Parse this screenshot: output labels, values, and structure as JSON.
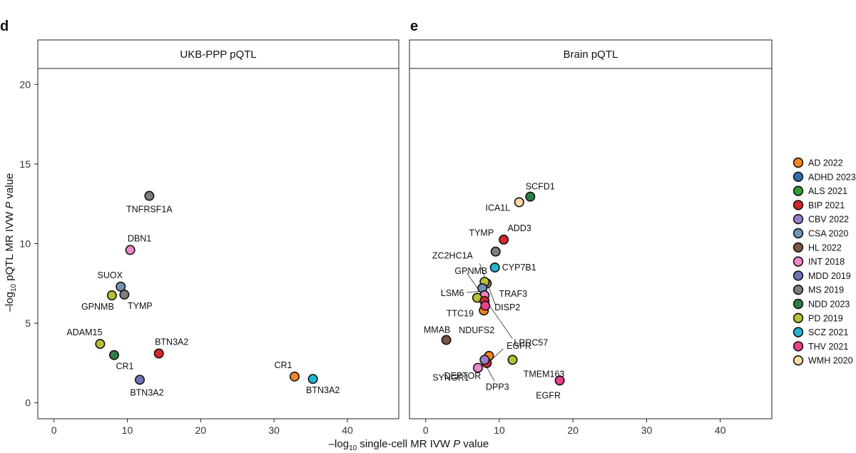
{
  "chart_data": [
    {
      "type": "scatter",
      "panel_letter": "d",
      "title": "UKB-PPP pQTL",
      "xlim": [
        -2.2,
        47
      ],
      "ylim": [
        -1.0,
        21
      ],
      "xticks": [
        0,
        10,
        20,
        30,
        40
      ],
      "yticks": [
        0,
        5,
        10,
        15,
        20
      ],
      "points": [
        {
          "label": "TNFRSF1A",
          "x": 13.0,
          "y": 13.0,
          "trait": "MS 2019"
        },
        {
          "label": "DBN1",
          "x": 10.4,
          "y": 9.6,
          "trait": "INT 2018"
        },
        {
          "label": "SUOX",
          "x": 9.1,
          "y": 7.3,
          "trait": "CSA 2020"
        },
        {
          "label": "GPNMB",
          "x": 7.9,
          "y": 6.75,
          "trait": "PD 2019"
        },
        {
          "label": "TYMP",
          "x": 9.6,
          "y": 6.8,
          "trait": "MS 2019"
        },
        {
          "label": "ADAM15",
          "x": 6.3,
          "y": 3.7,
          "trait": "PD 2019"
        },
        {
          "label": "CR1",
          "x": 8.2,
          "y": 3.0,
          "trait": "NDD 2023"
        },
        {
          "label": "BTN3A2",
          "x": 14.3,
          "y": 3.1,
          "trait": "BIP 2021"
        },
        {
          "label": "BTN3A2",
          "x": 11.7,
          "y": 1.45,
          "trait": "MDD 2019"
        },
        {
          "label": "CR1",
          "x": 32.8,
          "y": 1.65,
          "trait": "AD 2022"
        },
        {
          "label": "BTN3A2",
          "x": 35.3,
          "y": 1.5,
          "trait": "SCZ 2021"
        }
      ]
    },
    {
      "type": "scatter",
      "panel_letter": "e",
      "title": "Brain pQTL",
      "xlim": [
        -2.2,
        47
      ],
      "ylim": [
        -1.0,
        21
      ],
      "xticks": [
        0,
        10,
        20,
        30,
        40
      ],
      "yticks": [
        0,
        5,
        10,
        15,
        20
      ],
      "points": [
        {
          "label": "SCFD1",
          "x": 14.2,
          "y": 12.95,
          "trait": "NDD 2023"
        },
        {
          "label": "ICA1L",
          "x": 12.7,
          "y": 12.6,
          "trait": "WMH 2020"
        },
        {
          "label": "ADD3",
          "x": 10.6,
          "y": 10.25,
          "trait": "BIP 2021"
        },
        {
          "label": "TYMP",
          "x": 9.5,
          "y": 9.5,
          "trait": "MS 2019"
        },
        {
          "label": "CYP7B1",
          "x": 9.4,
          "y": 8.5,
          "trait": "SCZ 2021"
        },
        {
          "label": "ZC2HC1A",
          "x": 8.3,
          "y": 7.5,
          "trait": "MS 2019"
        },
        {
          "label": "GPNMB",
          "x": 8.0,
          "y": 7.6,
          "trait": "PD 2019"
        },
        {
          "label": "LSM6",
          "x": 7.7,
          "y": 7.2,
          "trait": "CSA 2020"
        },
        {
          "label": "TRAF3",
          "x": 8.0,
          "y": 6.75,
          "trait": "INT 2018"
        },
        {
          "label": "TTC19",
          "x": 7.0,
          "y": 6.6,
          "trait": "PD 2019"
        },
        {
          "label": "DISP2",
          "x": 8.0,
          "y": 6.4,
          "trait": "BIP 2021"
        },
        {
          "label": "NDUFS2",
          "x": 7.9,
          "y": 5.8,
          "trait": "AD 2022"
        },
        {
          "label": "LRRC57",
          "x": 8.1,
          "y": 6.1,
          "trait": "THV 2021"
        },
        {
          "label": "MMAB",
          "x": 2.8,
          "y": 3.95,
          "trait": "HL 2022"
        },
        {
          "label": "EGFR",
          "x": 8.6,
          "y": 2.95,
          "trait": "AD 2022"
        },
        {
          "label": "TMEM163",
          "x": 11.8,
          "y": 2.7,
          "trait": "PD 2019"
        },
        {
          "label": "DEPTOR",
          "x": 8.3,
          "y": 2.5,
          "trait": "BIP 2021"
        },
        {
          "label": "SYNGR1",
          "x": 7.1,
          "y": 2.2,
          "trait": "INT 2018"
        },
        {
          "label": "DPP3",
          "x": 8.0,
          "y": 2.7,
          "trait": "CBV 2022"
        },
        {
          "label": "EGFR",
          "x": 18.2,
          "y": 1.4,
          "trait": "THV 2021"
        }
      ]
    }
  ],
  "shared": {
    "xlabel_prefix": "–log",
    "xlabel_sub": "10",
    "xlabel_suffix": " single-cell MR IVW ",
    "xlabel_italic": "P",
    "xlabel_end": " value",
    "ylabel_prefix": "–log",
    "ylabel_sub": "10",
    "ylabel_suffix": " pQTL MR IVW ",
    "ylabel_italic": "P",
    "ylabel_end": " value"
  },
  "legend": [
    {
      "name": "AD 2022",
      "color": "#F7861E"
    },
    {
      "name": "ADHD 2023",
      "color": "#2E6FB0"
    },
    {
      "name": "ALS 2021",
      "color": "#2F9E33"
    },
    {
      "name": "BIP 2021",
      "color": "#D6262A"
    },
    {
      "name": "CBV 2022",
      "color": "#9A7FC8"
    },
    {
      "name": "CSA 2020",
      "color": "#6F93B5"
    },
    {
      "name": "HL 2022",
      "color": "#7A5646"
    },
    {
      "name": "INT 2018",
      "color": "#EE88C8"
    },
    {
      "name": "MDD 2019",
      "color": "#7171B8"
    },
    {
      "name": "MS 2019",
      "color": "#7E7E7E"
    },
    {
      "name": "NDD 2023",
      "color": "#2E7D4B"
    },
    {
      "name": "PD 2019",
      "color": "#B9BE33"
    },
    {
      "name": "SCZ 2021",
      "color": "#1FB7CF"
    },
    {
      "name": "THV 2021",
      "color": "#E8408D"
    },
    {
      "name": "WMH 2020",
      "color": "#FAD9A2"
    }
  ]
}
